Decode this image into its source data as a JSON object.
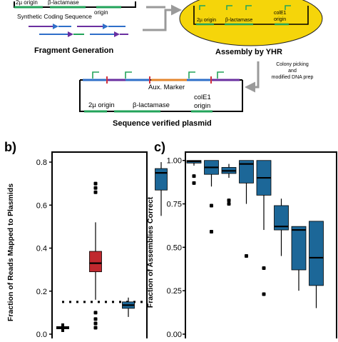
{
  "top": {
    "origin_left_label": "2µ origin",
    "bla_left_label": "β-lactamase",
    "origin_small_label": "origin",
    "coding_label": "Synthetic Coding Sequence",
    "fragment_label": "Fragment Generation",
    "assembly_label": "Assembly by YHR",
    "yhr_origin": "2µ origin",
    "yhr_bla": "β-lactamase",
    "yhr_cole1_line1": "colE1",
    "yhr_cole1_line2": "origin",
    "picking_line1": "Colony picking",
    "picking_line2": "and",
    "picking_line3": "modified DNA prep",
    "aux_label": "Aux. Marker",
    "plasmid_origin": "2µ origin",
    "plasmid_bla": "β-lactamase",
    "plasmid_cole1_line1": "colE1",
    "plasmid_cole1_line2": "origin",
    "plasmid_label": "Sequence verified plasmid",
    "colors": {
      "yellow": "#f5d50a",
      "green": "#22a35a",
      "purple": "#6a2fa0",
      "blue": "#2f6fc9",
      "orange": "#e4862d",
      "red": "#d2323c",
      "gray": "#9a9a9a"
    }
  },
  "chart_data": [
    {
      "panel": "b)",
      "type": "box",
      "ylabel": "Fraction of Reads Mapped to Plasmids",
      "ylim": [
        0,
        0.84
      ],
      "yticks": [
        "0.0",
        "0.2",
        "0.4",
        "0.6",
        "0.8"
      ],
      "ytick_values": [
        0.0,
        0.2,
        0.4,
        0.6,
        0.8
      ],
      "threshold": 0.15,
      "boxes": [
        {
          "fill": "#1b1b1b",
          "q1": 0.03,
          "median": 0.03,
          "q3": 0.03,
          "lo": 0.03,
          "hi": 0.03,
          "outliers": [],
          "marker": "plus"
        },
        {
          "fill": "#c0282e",
          "q1": 0.29,
          "median": 0.33,
          "q3": 0.385,
          "lo": 0.16,
          "hi": 0.52,
          "outliers": [
            0.7,
            0.68,
            0.66,
            0.1,
            0.07,
            0.05,
            0.03
          ]
        },
        {
          "fill": "#1c6798",
          "q1": 0.12,
          "median": 0.135,
          "q3": 0.15,
          "lo": 0.08,
          "hi": 0.17,
          "outliers": []
        },
        {
          "fill": "#1c6798",
          "q1": 0.67,
          "median": 0.75,
          "q3": 0.77,
          "lo": 0.55,
          "hi": 0.8,
          "outliers": []
        }
      ]
    },
    {
      "panel": "c)",
      "type": "box",
      "ylabel": "Fraction of Assemblies Correct",
      "ylim": [
        0,
        1.04
      ],
      "yticks": [
        "0.00",
        "0.25",
        "0.50",
        "0.75",
        "1.00"
      ],
      "ytick_values": [
        0.0,
        0.25,
        0.5,
        0.75,
        1.0
      ],
      "boxes": [
        {
          "fill": "#1c6798",
          "q1": 0.985,
          "median": 0.995,
          "q3": 1.0,
          "lo": 0.97,
          "hi": 1.0,
          "outliers": [
            0.91,
            0.87
          ]
        },
        {
          "fill": "#1c6798",
          "q1": 0.92,
          "median": 0.96,
          "q3": 1.0,
          "lo": 0.85,
          "hi": 1.0,
          "outliers": [
            0.74,
            0.59
          ]
        },
        {
          "fill": "#1c6798",
          "q1": 0.925,
          "median": 0.94,
          "q3": 0.96,
          "lo": 0.9,
          "hi": 0.98,
          "outliers": [
            0.77,
            0.75
          ]
        },
        {
          "fill": "#1c6798",
          "q1": 0.87,
          "median": 0.98,
          "q3": 1.0,
          "lo": 0.75,
          "hi": 1.0,
          "outliers": [
            0.45
          ]
        },
        {
          "fill": "#1c6798",
          "q1": 0.8,
          "median": 0.9,
          "q3": 1.0,
          "lo": 0.6,
          "hi": 1.0,
          "outliers": [
            0.38,
            0.23
          ]
        },
        {
          "fill": "#1c6798",
          "q1": 0.6,
          "median": 0.62,
          "q3": 0.74,
          "lo": 0.45,
          "hi": 0.78,
          "outliers": []
        },
        {
          "fill": "#1c6798",
          "q1": 0.37,
          "median": 0.6,
          "q3": 0.62,
          "lo": 0.25,
          "hi": 0.62,
          "outliers": []
        },
        {
          "fill": "#1c6798",
          "q1": 0.28,
          "median": 0.44,
          "q3": 0.65,
          "lo": 0.15,
          "hi": 0.65,
          "outliers": []
        }
      ]
    }
  ]
}
